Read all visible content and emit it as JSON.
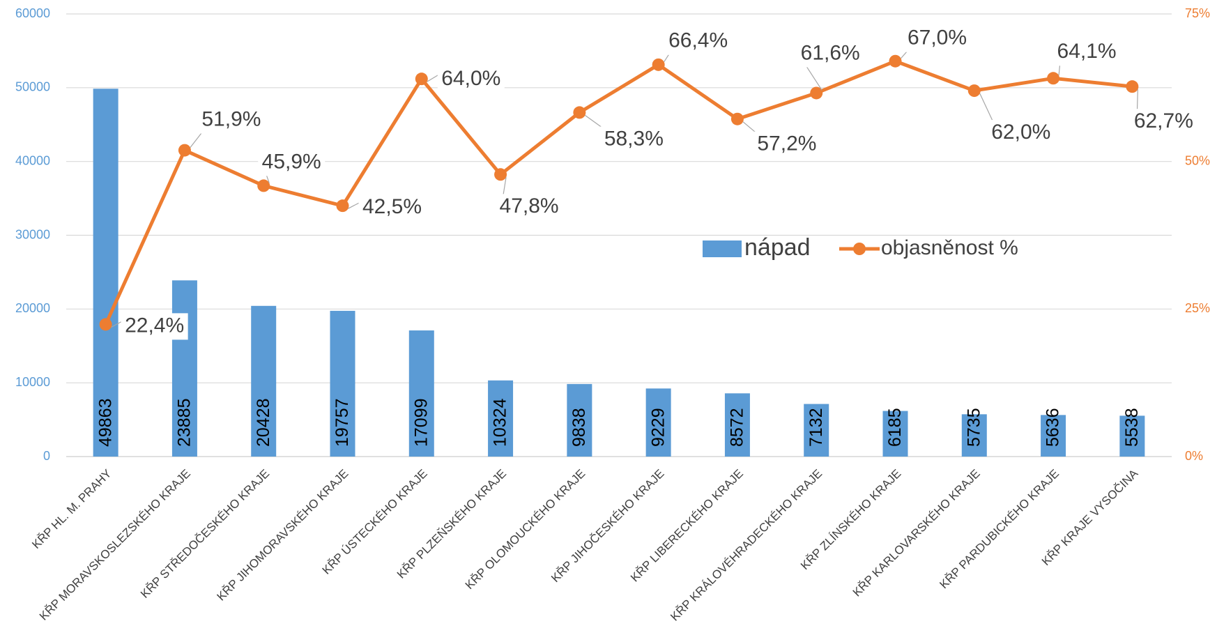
{
  "chart_data": {
    "type": "bar",
    "categories": [
      "KŘP HL. M. PRAHY",
      "KŘP MORAVSKOSLEZSKÉHO KRAJE",
      "KŘP STŘEDOČESKÉHO KRAJE",
      "KŘP JIHOMORAVSKÉHO KRAJE",
      "KŘP ÚSTECKÉHO KRAJE",
      "KŘP PLZEŇSKÉHO KRAJE",
      "KŘP OLOMOUCKÉHO KRAJE",
      "KŘP JIHOČESKÉHO KRAJE",
      "KŘP LIBERECKÉHO KRAJE",
      "KŘP KRÁLOVÉHRADECKÉHO KRAJE",
      "KŘP ZLÍNSKÉHO KRAJE",
      "KŘP KARLOVARSKÉHO KRAJE",
      "KŘP PARDUBICKÉHO KRAJE",
      "KŘP KRAJE VYSOČINA"
    ],
    "series": [
      {
        "name": "nápad",
        "type": "bar",
        "color": "#5b9bd5",
        "values": [
          49863,
          23885,
          20428,
          19757,
          17099,
          10324,
          9838,
          9229,
          8572,
          7132,
          6185,
          5735,
          5636,
          5538
        ]
      },
      {
        "name": "objasněnost %",
        "type": "line",
        "axis": "y2",
        "color": "#ed7d31",
        "values": [
          22.4,
          51.9,
          45.9,
          42.5,
          64.0,
          47.8,
          58.3,
          66.4,
          57.2,
          61.6,
          67.0,
          62.0,
          64.1,
          62.7
        ],
        "value_labels": [
          "22,4%",
          "51,9%",
          "45,9%",
          "42,5%",
          "64,0%",
          "47,8%",
          "58,3%",
          "66,4%",
          "57,2%",
          "61,6%",
          "67,0%",
          "62,0%",
          "64,1%",
          "62,7%"
        ]
      }
    ],
    "ylim": [
      0,
      60000
    ],
    "yticks": [
      0,
      10000,
      20000,
      30000,
      40000,
      50000,
      60000
    ],
    "y2lim": [
      0,
      75
    ],
    "y2ticks": [
      {
        "value": 0,
        "label": "0%"
      },
      {
        "value": 25,
        "label": "25%"
      },
      {
        "value": 50,
        "label": "50%"
      },
      {
        "value": 75,
        "label": "75%"
      }
    ],
    "grid": true,
    "legend": "center-right"
  }
}
